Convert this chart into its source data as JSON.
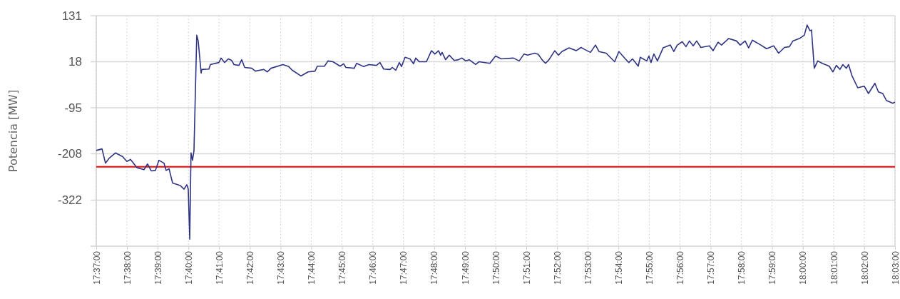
{
  "chart_data": {
    "type": "line",
    "ylabel": "Potencia [MW]",
    "x": [
      17.6167,
      17.6198,
      17.6217,
      17.6237,
      17.6271,
      17.631,
      17.6333,
      17.6353,
      17.6387,
      17.6426,
      17.6445,
      17.6465,
      17.6488,
      17.6507,
      17.6534,
      17.6546,
      17.6562,
      17.6581,
      17.6623,
      17.6643,
      17.6658,
      17.6666,
      17.6674,
      17.6681,
      17.6689,
      17.6697,
      17.6712,
      17.672,
      17.6736,
      17.6739,
      17.6778,
      17.6786,
      17.6832,
      17.6844,
      17.6863,
      17.6883,
      17.6902,
      17.6914,
      17.6941,
      17.6956,
      17.6972,
      17.701,
      17.703,
      17.7076,
      17.7095,
      17.7115,
      17.718,
      17.7211,
      17.7231,
      17.7277,
      17.7316,
      17.7354,
      17.7366,
      17.7405,
      17.7424,
      17.7451,
      17.749,
      17.7509,
      17.7521,
      17.7567,
      17.7579,
      17.7618,
      17.7645,
      17.7687,
      17.7706,
      17.7726,
      17.7761,
      17.7772,
      17.7792,
      17.7811,
      17.7823,
      17.7842,
      17.7869,
      17.7888,
      17.79,
      17.7919,
      17.7958,
      17.7985,
      17.8004,
      17.8024,
      17.8035,
      17.8043,
      17.8062,
      17.8082,
      17.8109,
      17.8132,
      17.8151,
      17.8171,
      17.819,
      17.8225,
      17.8244,
      17.8302,
      17.8333,
      17.8364,
      17.843,
      17.8461,
      17.8488,
      17.8507,
      17.8546,
      17.8565,
      17.8585,
      17.8604,
      17.8623,
      17.8654,
      17.8674,
      17.8693,
      17.8732,
      17.877,
      17.8797,
      17.8817,
      17.8848,
      17.8875,
      17.8894,
      17.8933,
      17.8979,
      17.9002,
      17.9037,
      17.9056,
      17.9076,
      17.9107,
      17.9118,
      17.9153,
      17.9165,
      17.9176,
      17.9192,
      17.9211,
      17.9242,
      17.9281,
      17.93,
      17.9319,
      17.9346,
      17.9366,
      17.9385,
      17.9405,
      17.9424,
      17.9447,
      17.9493,
      17.9513,
      17.954,
      17.9559,
      17.9598,
      17.964,
      17.966,
      17.9687,
      17.9706,
      17.9726,
      17.9772,
      17.9803,
      17.9842,
      17.9869,
      17.99,
      17.9927,
      17.9946,
      17.9985,
      18.0008,
      18.0023,
      18.0039,
      18.0047,
      18.0062,
      18.0081,
      18.0105,
      18.0143,
      18.0163,
      18.0182,
      18.0201,
      18.0217,
      18.0236,
      18.0248,
      18.0267,
      18.0298,
      18.0333,
      18.0356,
      18.0391,
      18.041,
      18.0433,
      18.0453,
      18.0488,
      18.05
    ],
    "series": [
      {
        "color": "#2e3383",
        "values": [
          -200,
          -196,
          -231,
          -219,
          -206,
          -215,
          -227,
          -222,
          -242,
          -247,
          -233,
          -250,
          -249,
          -224,
          -231,
          -249,
          -245,
          -280,
          -286,
          -295,
          -284,
          -295,
          -418,
          -206,
          -224,
          -201,
          83,
          69,
          -10,
          -1,
          0,
          11,
          16,
          27,
          16,
          25,
          21,
          11,
          9,
          23,
          4,
          2,
          -5,
          -1,
          -7,
          2,
          11,
          6,
          -3,
          -17,
          -7,
          -5,
          7,
          7,
          20,
          18,
          7,
          13,
          4,
          2,
          14,
          6,
          11,
          9,
          16,
          0,
          -1,
          4,
          -3,
          16,
          6,
          29,
          25,
          13,
          27,
          18,
          18,
          45,
          37,
          45,
          34,
          41,
          23,
          34,
          21,
          23,
          27,
          20,
          23,
          11,
          18,
          14,
          32,
          25,
          27,
          20,
          37,
          34,
          39,
          36,
          23,
          14,
          23,
          45,
          34,
          43,
          52,
          45,
          53,
          48,
          41,
          59,
          43,
          39,
          18,
          43,
          25,
          16,
          25,
          7,
          29,
          20,
          32,
          16,
          37,
          20,
          52,
          59,
          43,
          59,
          67,
          55,
          69,
          57,
          69,
          53,
          57,
          45,
          66,
          59,
          75,
          69,
          59,
          69,
          52,
          71,
          59,
          50,
          57,
          39,
          53,
          55,
          69,
          76,
          83,
          108,
          94,
          96,
          2,
          20,
          14,
          7,
          -7,
          9,
          -1,
          11,
          2,
          11,
          -17,
          -46,
          -42,
          -60,
          -35,
          -56,
          -60,
          -77,
          -84,
          -81
        ]
      }
    ],
    "xlim": [
      17.6167,
      18.05
    ],
    "xticks": [
      {
        "value": 17.6167,
        "label": "17:37:00"
      },
      {
        "value": 17.6333,
        "label": "17:38:00"
      },
      {
        "value": 17.65,
        "label": "17:39:00"
      },
      {
        "value": 17.6667,
        "label": "17:40:00"
      },
      {
        "value": 17.6833,
        "label": "17:41:00"
      },
      {
        "value": 17.7,
        "label": "17:42:00"
      },
      {
        "value": 17.7167,
        "label": "17:43:00"
      },
      {
        "value": 17.7333,
        "label": "17:44:00"
      },
      {
        "value": 17.75,
        "label": "17:45:00"
      },
      {
        "value": 17.7667,
        "label": "17:46:00"
      },
      {
        "value": 17.7833,
        "label": "17:47:00"
      },
      {
        "value": 17.8,
        "label": "17:48:00"
      },
      {
        "value": 17.8167,
        "label": "17:49:00"
      },
      {
        "value": 17.8333,
        "label": "17:50:00"
      },
      {
        "value": 17.85,
        "label": "17:51:00"
      },
      {
        "value": 17.8667,
        "label": "17:52:00"
      },
      {
        "value": 17.8833,
        "label": "17:53:00"
      },
      {
        "value": 17.9,
        "label": "17:54:00"
      },
      {
        "value": 17.9167,
        "label": "17:55:00"
      },
      {
        "value": 17.9333,
        "label": "17:56:00"
      },
      {
        "value": 17.95,
        "label": "17:57:00"
      },
      {
        "value": 17.9667,
        "label": "17:58:00"
      },
      {
        "value": 17.9833,
        "label": "17:59:00"
      },
      {
        "value": 18,
        "label": "18:00:00"
      },
      {
        "value": 18.0167,
        "label": "18:01:00"
      },
      {
        "value": 18.0333,
        "label": "18:02:00"
      },
      {
        "value": 18.05,
        "label": "18:03:00"
      }
    ],
    "ylim": [
      -435,
      131
    ],
    "yticks": [
      -322,
      -208,
      -95,
      18,
      131
    ],
    "grid": true,
    "marker": "none",
    "line_style": "solid",
    "ref_lines": [
      {
        "axis": "y",
        "value": -240,
        "color": "#ff0000"
      }
    ]
  }
}
